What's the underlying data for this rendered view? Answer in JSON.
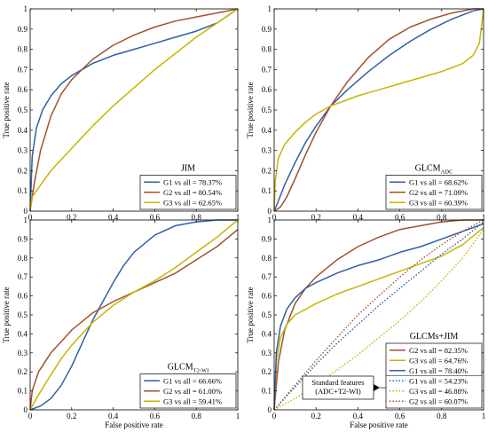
{
  "colors": {
    "G1": "#2e5fa8",
    "G2": "#a0522d",
    "G3": "#c8b400",
    "axis": "#000000"
  },
  "charts": [
    {
      "id": "jim",
      "type": "line",
      "title": "JIM",
      "title_sub": "",
      "xlabel": "False positive rate",
      "ylabel": "True positive rate",
      "xlim": [
        0,
        1
      ],
      "ylim": [
        0,
        1
      ],
      "xticks": [
        "0",
        "0.2",
        "0.4",
        "0.6",
        "0.8",
        "1"
      ],
      "yticks": [
        "0",
        "0.1",
        "0.2",
        "0.3",
        "0.4",
        "0.5",
        "0.6",
        "0.7",
        "0.8",
        "0.9",
        "1"
      ],
      "legend_position": "bottom-right",
      "series": [
        {
          "name": "G1 vs all = 78.37%",
          "color_key": "G1",
          "style": "solid",
          "x": [
            0,
            0.01,
            0.03,
            0.06,
            0.1,
            0.15,
            0.2,
            0.3,
            0.4,
            0.5,
            0.6,
            0.7,
            0.8,
            0.9,
            1
          ],
          "y": [
            0,
            0.27,
            0.41,
            0.5,
            0.57,
            0.63,
            0.67,
            0.73,
            0.77,
            0.8,
            0.83,
            0.86,
            0.89,
            0.93,
            1
          ]
        },
        {
          "name": "G2 vs all = 80.54%",
          "color_key": "G2",
          "style": "solid",
          "x": [
            0,
            0.02,
            0.05,
            0.1,
            0.15,
            0.2,
            0.25,
            0.3,
            0.4,
            0.5,
            0.6,
            0.7,
            0.8,
            0.9,
            1
          ],
          "y": [
            0,
            0.14,
            0.3,
            0.47,
            0.58,
            0.65,
            0.7,
            0.75,
            0.82,
            0.87,
            0.91,
            0.94,
            0.96,
            0.98,
            1
          ]
        },
        {
          "name": "G3 vs all = 62.65%",
          "color_key": "G3",
          "style": "solid",
          "x": [
            0,
            0.01,
            0.05,
            0.1,
            0.2,
            0.3,
            0.4,
            0.5,
            0.6,
            0.7,
            0.8,
            0.9,
            1
          ],
          "y": [
            0,
            0.07,
            0.13,
            0.2,
            0.31,
            0.42,
            0.52,
            0.61,
            0.7,
            0.78,
            0.86,
            0.93,
            1
          ]
        }
      ]
    },
    {
      "id": "glcm-adc",
      "type": "line",
      "title": "GLCM",
      "title_sub": "ADC",
      "xlabel": "False positive rate",
      "ylabel": "True positive rate",
      "xlim": [
        0,
        1
      ],
      "ylim": [
        0,
        1
      ],
      "xticks": [
        "0",
        "0.2",
        "0.4",
        "0.6",
        "0.8",
        "1"
      ],
      "yticks": [
        "0",
        "0.1",
        "0.2",
        "0.3",
        "0.4",
        "0.5",
        "0.6",
        "0.7",
        "0.8",
        "0.9",
        "1"
      ],
      "legend_position": "bottom-right",
      "series": [
        {
          "name": "G1 vs all = 68.62%",
          "color_key": "G1",
          "style": "solid",
          "x": [
            0,
            0.02,
            0.05,
            0.1,
            0.15,
            0.2,
            0.27,
            0.35,
            0.45,
            0.55,
            0.65,
            0.75,
            0.85,
            0.95,
            1
          ],
          "y": [
            0,
            0.05,
            0.13,
            0.24,
            0.34,
            0.42,
            0.52,
            0.6,
            0.69,
            0.77,
            0.84,
            0.9,
            0.95,
            0.99,
            1
          ]
        },
        {
          "name": "G2 vs all = 71.09%",
          "color_key": "G2",
          "style": "solid",
          "x": [
            0,
            0.03,
            0.06,
            0.1,
            0.15,
            0.2,
            0.27,
            0.35,
            0.45,
            0.55,
            0.65,
            0.75,
            0.85,
            0.95,
            1
          ],
          "y": [
            0,
            0.02,
            0.07,
            0.16,
            0.28,
            0.39,
            0.52,
            0.64,
            0.76,
            0.85,
            0.91,
            0.95,
            0.98,
            1,
            1
          ]
        },
        {
          "name": "G3 vs all = 60.39%",
          "color_key": "G3",
          "style": "solid",
          "x": [
            0,
            0.005,
            0.02,
            0.05,
            0.1,
            0.15,
            0.2,
            0.27,
            0.4,
            0.5,
            0.6,
            0.7,
            0.8,
            0.9,
            0.95,
            0.98,
            1
          ],
          "y": [
            0,
            0.15,
            0.26,
            0.33,
            0.39,
            0.44,
            0.48,
            0.52,
            0.57,
            0.6,
            0.63,
            0.66,
            0.69,
            0.73,
            0.77,
            0.83,
            1
          ]
        }
      ]
    },
    {
      "id": "glcm-t2wi",
      "type": "line",
      "title": "GLCM",
      "title_sub": "T2-WI",
      "xlabel": "False positive rate",
      "ylabel": "True positive rate",
      "xlim": [
        0,
        1
      ],
      "ylim": [
        0,
        1
      ],
      "xticks": [
        "0",
        "0.2",
        "0.4",
        "0.6",
        "0.8",
        "1"
      ],
      "yticks": [
        "0",
        "0.1",
        "0.2",
        "0.3",
        "0.4",
        "0.5",
        "0.6",
        "0.7",
        "0.8",
        "0.9",
        "1"
      ],
      "legend_position": "bottom-right",
      "series": [
        {
          "name": "G1 vs all = 66.66%",
          "color_key": "G1",
          "style": "solid",
          "x": [
            0,
            0.05,
            0.1,
            0.15,
            0.2,
            0.25,
            0.3,
            0.35,
            0.4,
            0.45,
            0.5,
            0.6,
            0.7,
            0.8,
            0.9,
            1
          ],
          "y": [
            0,
            0.02,
            0.06,
            0.13,
            0.23,
            0.35,
            0.47,
            0.57,
            0.67,
            0.76,
            0.83,
            0.92,
            0.97,
            0.99,
            1,
            1
          ]
        },
        {
          "name": "G2 vs all = 61.00%",
          "color_key": "G2",
          "style": "solid",
          "x": [
            0,
            0.01,
            0.04,
            0.1,
            0.2,
            0.3,
            0.4,
            0.5,
            0.6,
            0.7,
            0.8,
            0.9,
            1
          ],
          "y": [
            0,
            0.1,
            0.2,
            0.3,
            0.42,
            0.51,
            0.57,
            0.62,
            0.67,
            0.72,
            0.79,
            0.86,
            0.95
          ]
        },
        {
          "name": "G3 vs all = 59.41%",
          "color_key": "G3",
          "style": "solid",
          "x": [
            0,
            0.03,
            0.08,
            0.15,
            0.2,
            0.3,
            0.4,
            0.5,
            0.6,
            0.7,
            0.8,
            0.9,
            1
          ],
          "y": [
            0,
            0.06,
            0.15,
            0.27,
            0.34,
            0.46,
            0.55,
            0.62,
            0.68,
            0.75,
            0.83,
            0.91,
            1
          ]
        }
      ]
    },
    {
      "id": "glcms-jim",
      "type": "line",
      "title": "GLCMs+JIM",
      "title_sub": "",
      "xlabel": "False positive rate",
      "ylabel": "True positive rate",
      "xlim": [
        0,
        1
      ],
      "ylim": [
        0,
        1
      ],
      "xticks": [
        "0",
        "0.2",
        "0.4",
        "0.6",
        "0.8",
        "1"
      ],
      "yticks": [
        "0",
        "0.1",
        "0.2",
        "0.3",
        "0.4",
        "0.5",
        "0.6",
        "0.7",
        "0.8",
        "0.9",
        "1"
      ],
      "legend_position": "bottom-right",
      "callout": "Standard features\n(ADC+T2-WI)",
      "series": [
        {
          "name": "G2 vs all = 82.35%",
          "color_key": "G2",
          "style": "solid",
          "x": [
            0,
            0.02,
            0.05,
            0.1,
            0.15,
            0.2,
            0.3,
            0.4,
            0.5,
            0.6,
            0.7,
            0.8,
            0.9,
            1
          ],
          "y": [
            0,
            0.25,
            0.42,
            0.56,
            0.64,
            0.7,
            0.79,
            0.86,
            0.91,
            0.95,
            0.97,
            0.99,
            1,
            1
          ]
        },
        {
          "name": "G3 vs all = 64.76%",
          "color_key": "G3",
          "style": "solid",
          "x": [
            0,
            0.01,
            0.03,
            0.06,
            0.1,
            0.2,
            0.3,
            0.4,
            0.5,
            0.6,
            0.7,
            0.8,
            0.9,
            1
          ],
          "y": [
            0,
            0.25,
            0.38,
            0.45,
            0.5,
            0.56,
            0.61,
            0.65,
            0.69,
            0.73,
            0.77,
            0.81,
            0.87,
            0.96
          ]
        },
        {
          "name": "G1 vs all = 78.40%",
          "color_key": "G1",
          "style": "solid",
          "x": [
            0,
            0.01,
            0.03,
            0.06,
            0.1,
            0.15,
            0.2,
            0.3,
            0.4,
            0.5,
            0.6,
            0.7,
            0.8,
            0.9,
            1
          ],
          "y": [
            0,
            0.3,
            0.44,
            0.53,
            0.59,
            0.64,
            0.67,
            0.72,
            0.76,
            0.79,
            0.83,
            0.86,
            0.9,
            0.94,
            0.98
          ]
        },
        {
          "name": "G1 vs all = 54.23%",
          "color_key": "G1",
          "style": "dotted",
          "x": [
            0,
            0.1,
            0.2,
            0.3,
            0.4,
            0.5,
            0.6,
            0.7,
            0.8,
            0.9,
            1
          ],
          "y": [
            0,
            0.12,
            0.24,
            0.35,
            0.45,
            0.55,
            0.64,
            0.73,
            0.82,
            0.9,
            0.99
          ]
        },
        {
          "name": "G3 vs all = 46.88%",
          "color_key": "G3",
          "style": "dotted",
          "x": [
            0,
            0.1,
            0.2,
            0.3,
            0.4,
            0.5,
            0.6,
            0.7,
            0.8,
            0.9,
            1
          ],
          "y": [
            0,
            0.06,
            0.13,
            0.21,
            0.29,
            0.38,
            0.47,
            0.57,
            0.68,
            0.8,
            0.95
          ]
        },
        {
          "name": "G2 vs all = 60.07%",
          "color_key": "G2",
          "style": "dotted",
          "x": [
            0,
            0.1,
            0.2,
            0.3,
            0.4,
            0.5,
            0.6,
            0.7,
            0.8,
            0.9,
            1
          ],
          "y": [
            0,
            0.13,
            0.26,
            0.38,
            0.5,
            0.6,
            0.7,
            0.79,
            0.87,
            0.94,
            1
          ]
        }
      ]
    }
  ]
}
